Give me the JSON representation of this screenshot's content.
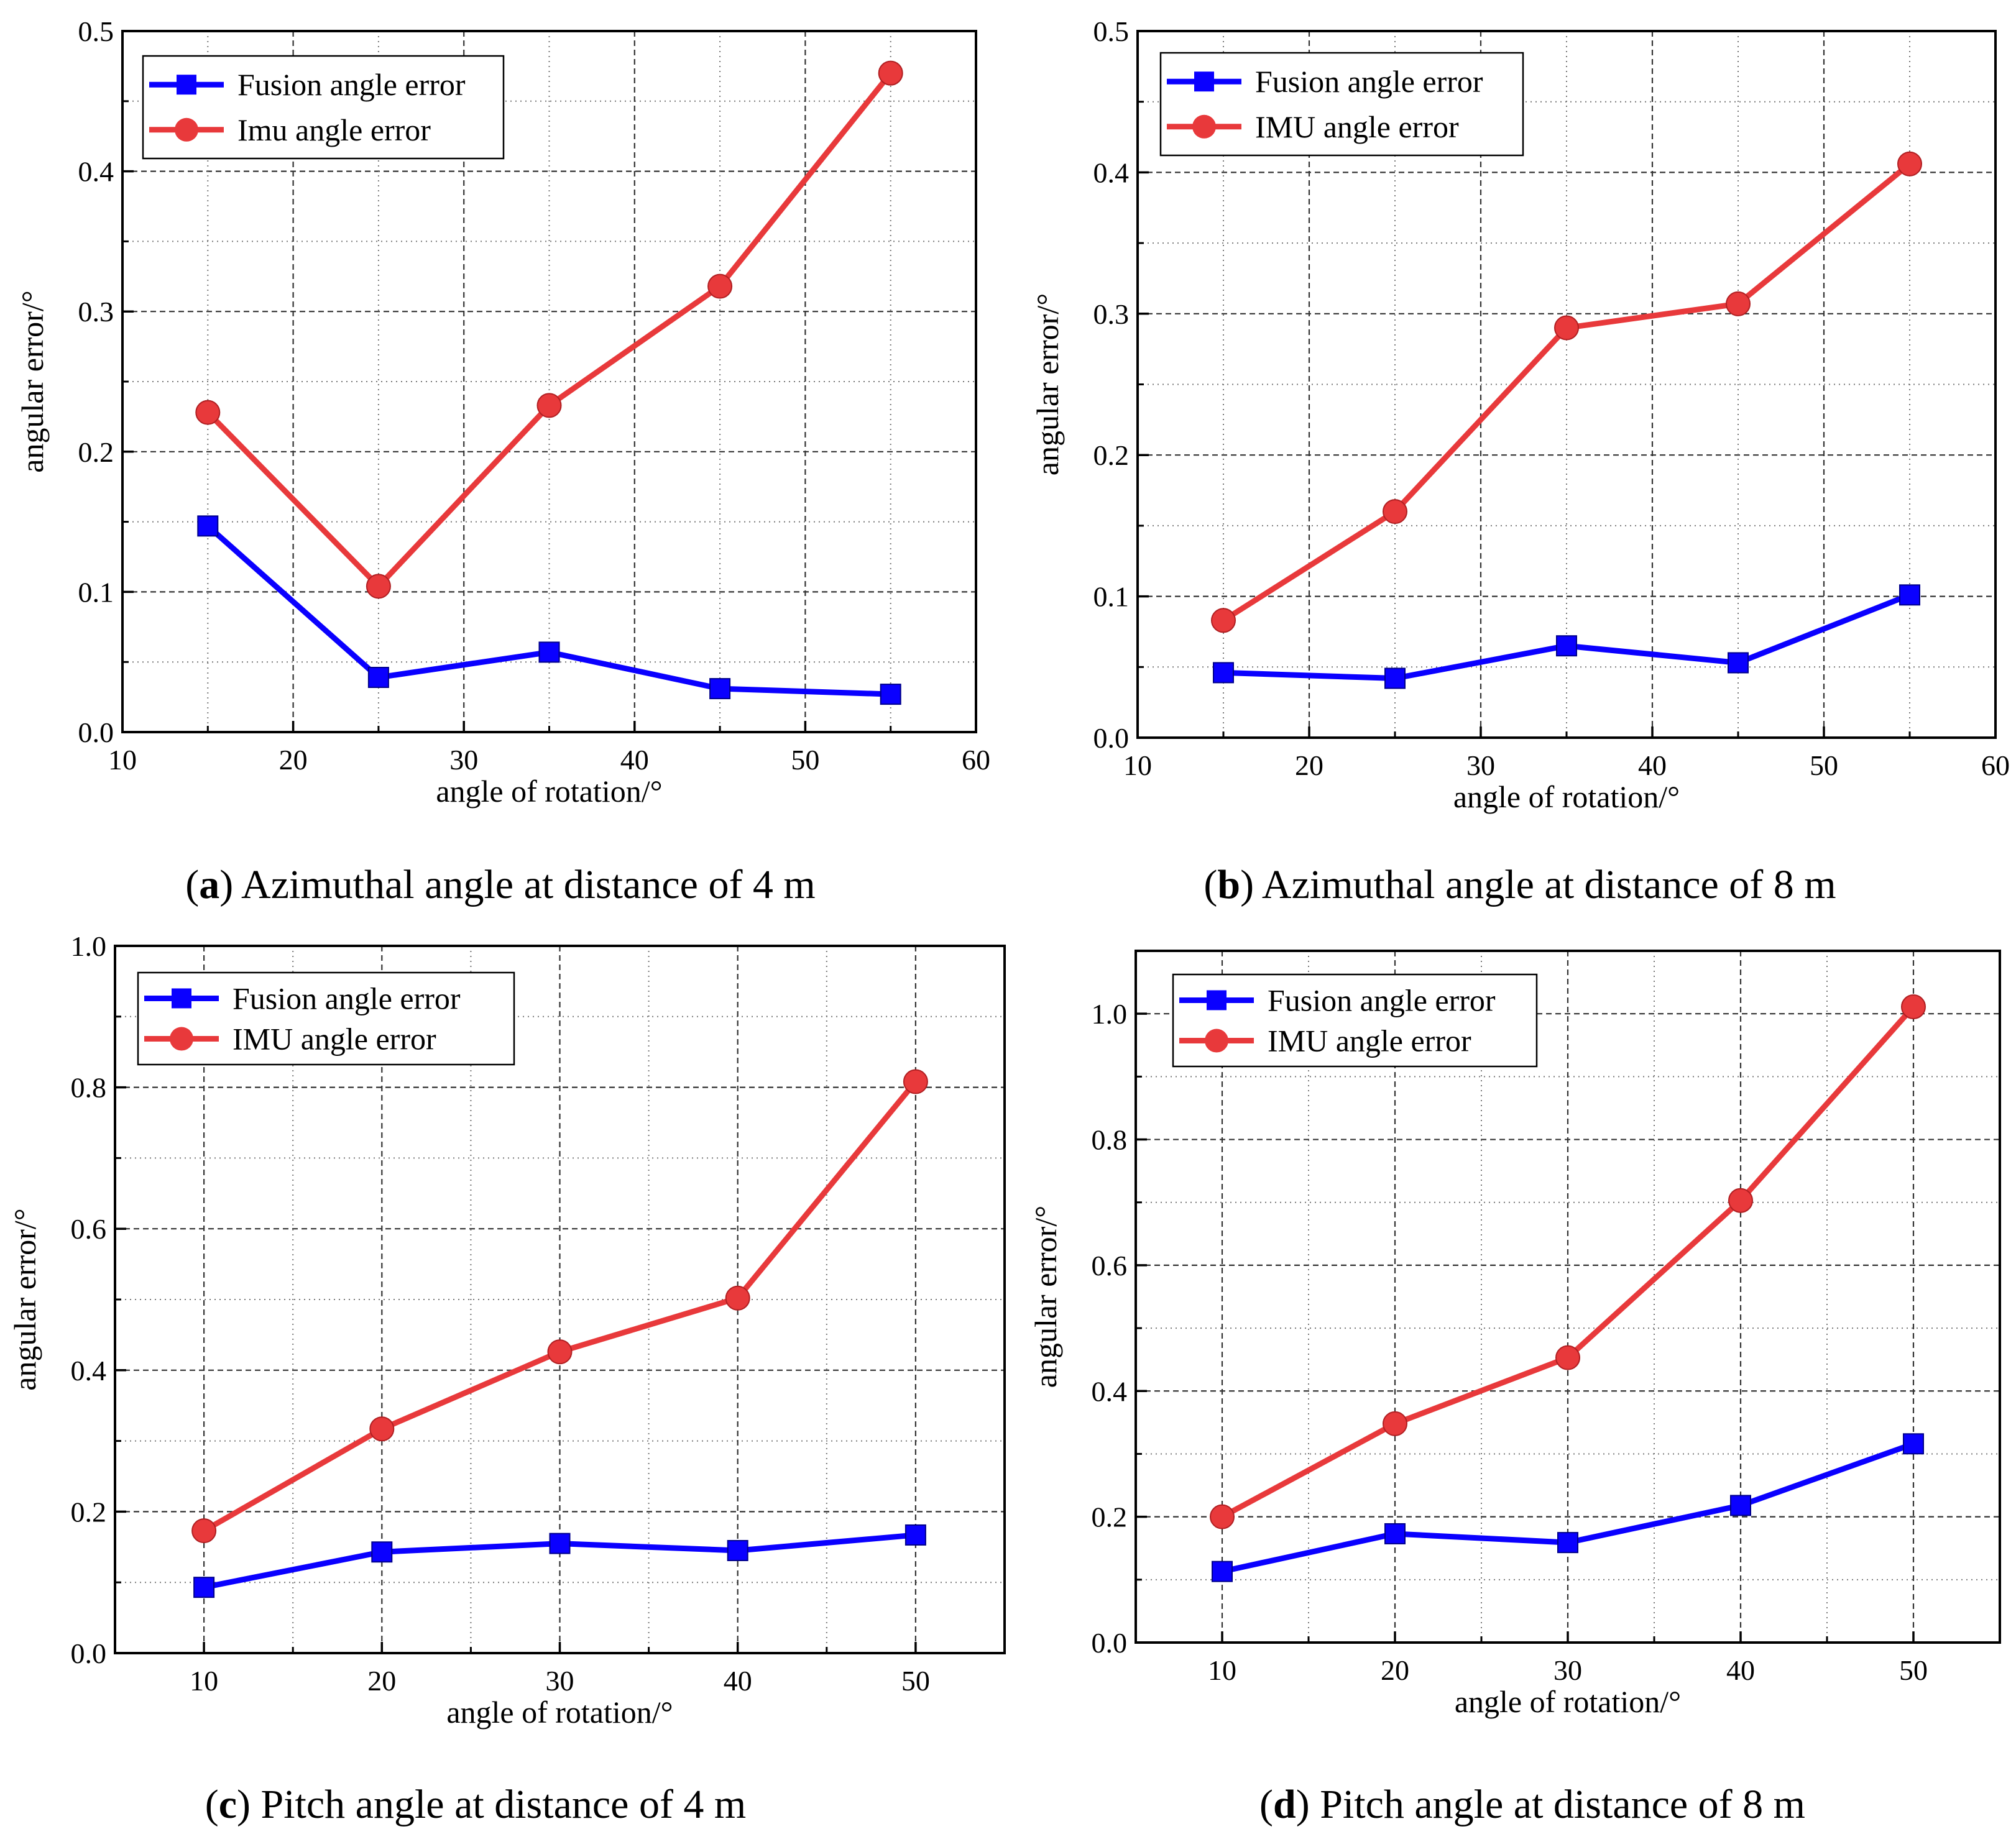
{
  "figure": {
    "panels": [
      {
        "id": "a",
        "caption_letter": "a",
        "caption_text": "Azimuthal angle at distance of 4 m"
      },
      {
        "id": "b",
        "caption_letter": "b",
        "caption_text": "Azimuthal angle at distance of 8 m"
      },
      {
        "id": "c",
        "caption_letter": "c",
        "caption_text": "Pitch angle at distance of 4 m"
      },
      {
        "id": "d",
        "caption_letter": "d",
        "caption_text": "Pitch angle at distance of 8 m"
      }
    ]
  },
  "chart_data": [
    {
      "type": "line",
      "panel": "a",
      "title": "",
      "xlabel": "angle of rotation/°",
      "ylabel": "angular error/°",
      "xlim": [
        10,
        60
      ],
      "ylim": [
        0,
        0.5
      ],
      "xticks": [
        10,
        20,
        30,
        40,
        50,
        60
      ],
      "xtick_labels": [
        "10",
        "20",
        "30",
        "40",
        "50",
        "60"
      ],
      "yticks": [
        0.0,
        0.1,
        0.2,
        0.3,
        0.4,
        0.5
      ],
      "ytick_labels": [
        "0.0",
        "0.1",
        "0.2",
        "0.3",
        "0.4",
        "0.5"
      ],
      "grid": true,
      "legend_position": "top-left",
      "x": [
        15,
        25,
        35,
        45,
        55
      ],
      "series": [
        {
          "name": "Fusion angle error",
          "color": "#0a00ff",
          "marker": "square",
          "values": [
            0.147,
            0.039,
            0.057,
            0.031,
            0.027
          ]
        },
        {
          "name": "Imu angle error",
          "color": "#e8393b",
          "marker": "circle",
          "values": [
            0.228,
            0.104,
            0.233,
            0.318,
            0.47
          ]
        }
      ]
    },
    {
      "type": "line",
      "panel": "b",
      "title": "",
      "xlabel": "angle of rotation/°",
      "ylabel": "angular error/°",
      "xlim": [
        10,
        60
      ],
      "ylim": [
        0,
        0.5
      ],
      "xticks": [
        10,
        20,
        30,
        40,
        50,
        60
      ],
      "xtick_labels": [
        "10",
        "20",
        "30",
        "40",
        "50",
        "60"
      ],
      "yticks": [
        0.0,
        0.1,
        0.2,
        0.3,
        0.4,
        0.5
      ],
      "ytick_labels": [
        "0.0",
        "0.1",
        "0.2",
        "0.3",
        "0.4",
        "0.5"
      ],
      "grid": true,
      "legend_position": "top-left",
      "x": [
        15,
        25,
        35,
        45,
        55
      ],
      "series": [
        {
          "name": "Fusion angle error",
          "color": "#0a00ff",
          "marker": "square",
          "values": [
            0.046,
            0.042,
            0.065,
            0.053,
            0.101
          ]
        },
        {
          "name": "IMU angle error",
          "color": "#e8393b",
          "marker": "circle",
          "values": [
            0.083,
            0.16,
            0.29,
            0.307,
            0.406
          ]
        }
      ]
    },
    {
      "type": "line",
      "panel": "c",
      "title": "",
      "xlabel": "angle of rotation/°",
      "ylabel": "angular error/°",
      "xlim": [
        5,
        55
      ],
      "ylim": [
        0,
        1.0
      ],
      "xticks": [
        10,
        20,
        30,
        40,
        50
      ],
      "xtick_labels": [
        "10",
        "20",
        "30",
        "40",
        "50"
      ],
      "yticks": [
        0.0,
        0.2,
        0.4,
        0.6,
        0.8,
        1.0
      ],
      "ytick_labels": [
        "0.0",
        "0.2",
        "0.4",
        "0.6",
        "0.8",
        "1.0"
      ],
      "grid": true,
      "legend_position": "top-left",
      "x": [
        10,
        20,
        30,
        40,
        50
      ],
      "series": [
        {
          "name": "Fusion angle error",
          "color": "#0a00ff",
          "marker": "square",
          "values": [
            0.093,
            0.143,
            0.155,
            0.145,
            0.167
          ]
        },
        {
          "name": "IMU angle error",
          "color": "#e8393b",
          "marker": "circle",
          "values": [
            0.173,
            0.317,
            0.426,
            0.502,
            0.808
          ]
        }
      ]
    },
    {
      "type": "line",
      "panel": "d",
      "title": "",
      "xlabel": "angle of rotation/°",
      "ylabel": "angular error/°",
      "xlim": [
        5,
        55
      ],
      "ylim": [
        0,
        1.1
      ],
      "xticks": [
        10,
        20,
        30,
        40,
        50
      ],
      "xtick_labels": [
        "10",
        "20",
        "30",
        "40",
        "50"
      ],
      "yticks": [
        0.0,
        0.2,
        0.4,
        0.6,
        0.8,
        1.0
      ],
      "ytick_labels": [
        "0.0",
        "0.2",
        "0.4",
        "0.6",
        "0.8",
        "1.0"
      ],
      "grid": true,
      "legend_position": "top-left",
      "x": [
        10,
        20,
        30,
        40,
        50
      ],
      "series": [
        {
          "name": "Fusion angle error",
          "color": "#0a00ff",
          "marker": "square",
          "values": [
            0.113,
            0.173,
            0.159,
            0.218,
            0.316
          ]
        },
        {
          "name": "IMU angle error",
          "color": "#e8393b",
          "marker": "circle",
          "values": [
            0.2,
            0.348,
            0.453,
            0.703,
            1.011
          ]
        }
      ]
    }
  ]
}
